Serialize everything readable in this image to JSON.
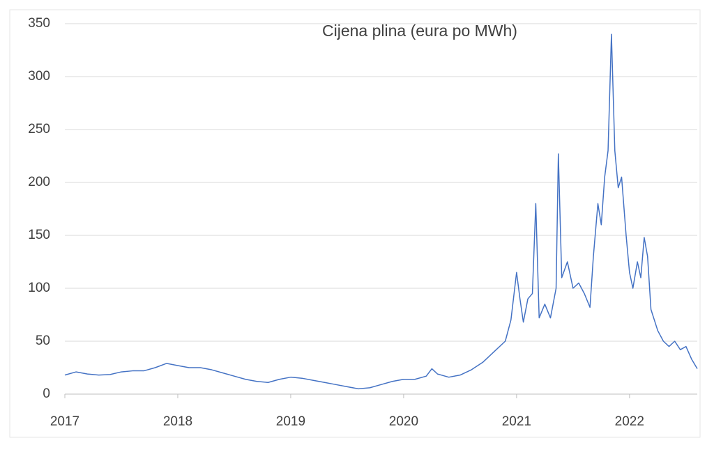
{
  "chart_data": {
    "type": "line",
    "title": "Cijena plina (eura po MWh)",
    "color": "#4472c4",
    "grid": true,
    "x": [
      2017.0,
      2017.1,
      2017.2,
      2017.3,
      2017.4,
      2017.5,
      2017.6,
      2017.7,
      2017.8,
      2017.9,
      2018.0,
      2018.1,
      2018.2,
      2018.3,
      2018.4,
      2018.5,
      2018.6,
      2018.7,
      2018.8,
      2018.9,
      2019.0,
      2019.1,
      2019.2,
      2019.3,
      2019.4,
      2019.5,
      2019.6,
      2019.7,
      2019.8,
      2019.9,
      2020.0,
      2020.1,
      2020.2,
      2020.25,
      2020.3,
      2020.4,
      2020.5,
      2020.6,
      2020.7,
      2020.8,
      2020.9,
      2020.95,
      2021.0,
      2021.03,
      2021.06,
      2021.1,
      2021.14,
      2021.17,
      2021.2,
      2021.25,
      2021.3,
      2021.35,
      2021.37,
      2021.4,
      2021.45,
      2021.5,
      2021.55,
      2021.6,
      2021.65,
      2021.68,
      2021.72,
      2021.75,
      2021.78,
      2021.81,
      2021.84,
      2021.87,
      2021.9,
      2021.93,
      2021.97,
      2022.0,
      2022.03,
      2022.07,
      2022.1,
      2022.13,
      2022.16,
      2022.19,
      2022.25,
      2022.3,
      2022.35,
      2022.4,
      2022.45,
      2022.5,
      2022.55,
      2022.6
    ],
    "values": [
      18,
      21,
      19,
      18,
      18.5,
      21,
      22,
      22,
      25,
      29,
      27,
      25,
      25,
      23,
      20,
      17,
      14,
      12,
      11,
      14,
      16,
      15,
      13,
      11,
      9,
      7,
      5,
      6,
      9,
      12,
      14,
      14,
      17,
      24,
      19,
      16,
      18,
      23,
      30,
      40,
      50,
      70,
      115,
      90,
      68,
      90,
      95,
      180,
      72,
      85,
      72,
      100,
      227,
      110,
      125,
      100,
      105,
      95,
      82,
      130,
      180,
      160,
      205,
      230,
      340,
      230,
      195,
      205,
      150,
      115,
      100,
      125,
      110,
      148,
      130,
      80,
      60,
      50,
      45,
      50,
      42,
      45,
      33,
      24
    ],
    "xlim": [
      2017,
      2022.6
    ],
    "xticks": [
      2017,
      2018,
      2019,
      2020,
      2021,
      2022
    ],
    "ylim": [
      0,
      350
    ],
    "yticks": [
      0,
      50,
      100,
      150,
      200,
      250,
      300,
      350
    ]
  }
}
